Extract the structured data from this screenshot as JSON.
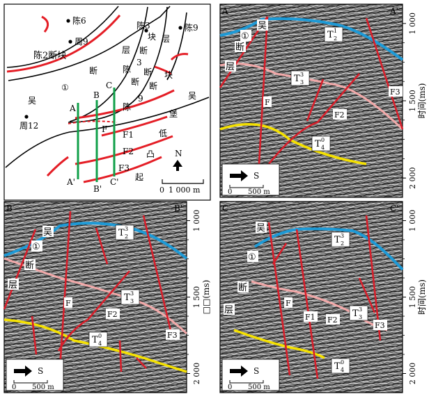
{
  "map": {
    "blocks": {
      "chen6": "陈6",
      "zhou9": "周9",
      "chen2_block": "陈2断块",
      "chen3": "陈3",
      "chen9": "陈9",
      "zhou12": "周12"
    },
    "chen39_fault_block_chars": [
      "陈",
      "3",
      "块",
      "断",
      "层",
      "陈",
      "3",
      "断",
      "块",
      "陈",
      "9"
    ],
    "wu_bao_low_uplift_chars": [
      "吴",
      "堡",
      "低",
      "凸",
      "起"
    ],
    "wu_fault_chars": [
      "断",
      "吴",
      "①"
    ],
    "lines": {
      "A": "A",
      "A_prime": "A'",
      "B": "B",
      "B_prime": "B'",
      "C": "C",
      "C_prime": "C'"
    },
    "faults": {
      "F": "F",
      "F1": "F1",
      "F2": "F2",
      "F3": "F3"
    },
    "north": "N",
    "scale_zero": "0",
    "scale_label": "1 000 m"
  },
  "section_common": {
    "direction": "S",
    "scale_zero": "0",
    "scale_label": "500 m",
    "time_ticks": [
      "1 000",
      "1 500",
      "2 000"
    ]
  },
  "panels": [
    {
      "id": "A",
      "left_label": "A",
      "right_label": "A'",
      "axis_title": "时间(ms)",
      "wu_fault_chars": [
        "吴",
        "①",
        "断",
        "层"
      ],
      "horizon_labels": {
        "t21": "T",
        "t21_sup": "1",
        "t21_sub": "2",
        "t33": "T",
        "t33_sup": "3",
        "t33_sub": "3",
        "t40": "T",
        "t40_sup": "0",
        "t40_sub": "4"
      },
      "fault_labels": [
        "F",
        "F2",
        "F3"
      ]
    },
    {
      "id": "B",
      "left_label": "B",
      "right_label": "B'",
      "axis_title": "□□(ms)",
      "wu_fault_chars": [
        "吴",
        "①",
        "断",
        "层"
      ],
      "horizon_labels": {
        "t23": "T",
        "t23_sup": "3",
        "t23_sub": "2",
        "t33": "T",
        "t33_sup": "3",
        "t33_sub": "3",
        "t40": "T",
        "t40_sup": "0",
        "t40_sub": "4"
      },
      "fault_labels": [
        "F",
        "F2",
        "F3"
      ]
    },
    {
      "id": "C",
      "left_label": "C",
      "right_label": "C'",
      "axis_title": "时间(ms)",
      "wu_fault_chars": [
        "吴",
        "①",
        "断",
        "层"
      ],
      "horizon_labels": {
        "t23": "T",
        "t23_sup": "3",
        "t23_sub": "2",
        "t33": "T",
        "t33_sup": "3",
        "t33_sub": "3",
        "t40": "T",
        "t40_sup": "0",
        "t40_sub": "4"
      },
      "fault_labels": [
        "F",
        "F1",
        "F2",
        "F3"
      ]
    }
  ]
}
